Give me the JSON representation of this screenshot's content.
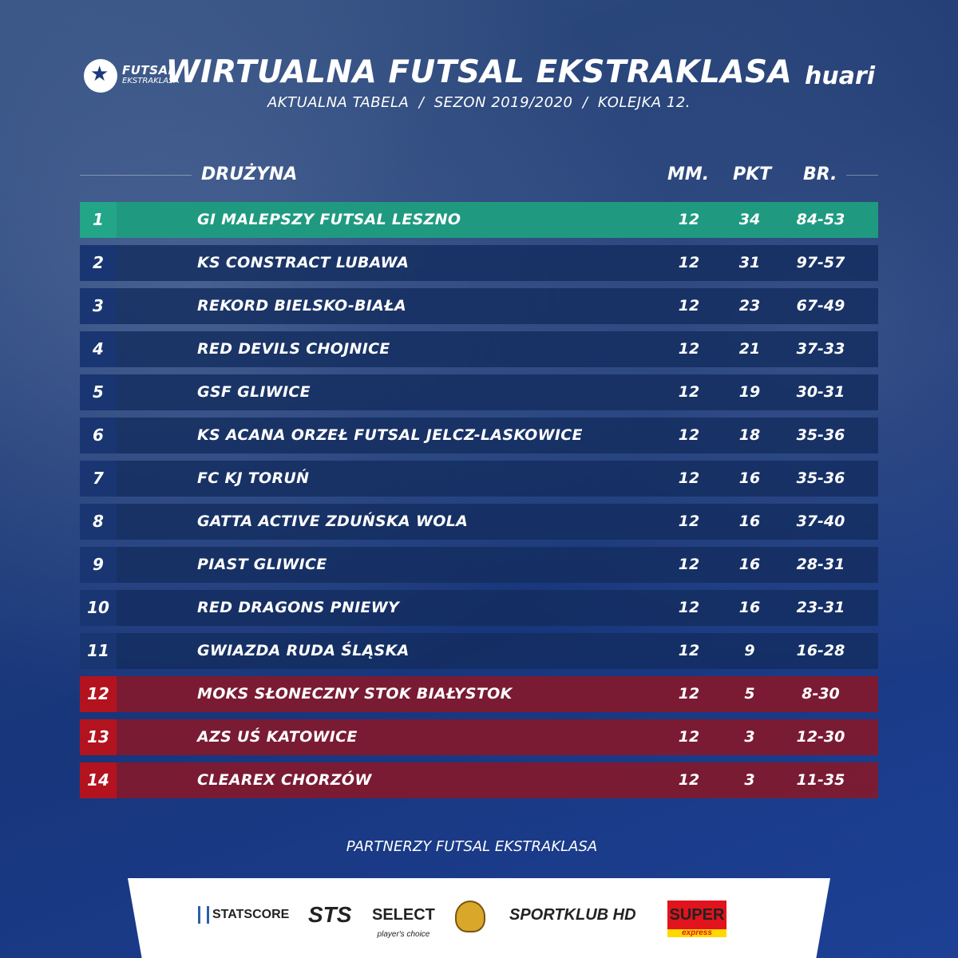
{
  "header": {
    "logo_left_line1": "FUTSAL",
    "logo_left_line2": "EKSTRAKLASA",
    "title": "WIRTUALNA FUTSAL EKSTRAKLASA",
    "subtitle": "AKTUALNA TABELA  /  SEZON 2019/2020  /  KOLEJKA 12.",
    "logo_right": "huari"
  },
  "table": {
    "headers": {
      "team": "DRUŻYNA",
      "mm": "MM.",
      "pkt": "PKT",
      "br": "BR."
    },
    "rows": [
      {
        "pos": "1",
        "team": "GI MALEPSZY FUTSAL LESZNO",
        "mm": "12",
        "pkt": "34",
        "br": "84-53",
        "zone": "promo"
      },
      {
        "pos": "2",
        "team": "KS CONSTRACT LUBAWA",
        "mm": "12",
        "pkt": "31",
        "br": "97-57",
        "zone": "normal"
      },
      {
        "pos": "3",
        "team": "REKORD BIELSKO-BIAŁA",
        "mm": "12",
        "pkt": "23",
        "br": "67-49",
        "zone": "normal"
      },
      {
        "pos": "4",
        "team": "RED DEVILS CHOJNICE",
        "mm": "12",
        "pkt": "21",
        "br": "37-33",
        "zone": "normal"
      },
      {
        "pos": "5",
        "team": "GSF GLIWICE",
        "mm": "12",
        "pkt": "19",
        "br": "30-31",
        "zone": "normal"
      },
      {
        "pos": "6",
        "team": "KS ACANA ORZEŁ FUTSAL JELCZ-LASKOWICE",
        "mm": "12",
        "pkt": "18",
        "br": "35-36",
        "zone": "normal"
      },
      {
        "pos": "7",
        "team": "FC KJ TORUŃ",
        "mm": "12",
        "pkt": "16",
        "br": "35-36",
        "zone": "normal"
      },
      {
        "pos": "8",
        "team": "GATTA ACTIVE ZDUŃSKA WOLA",
        "mm": "12",
        "pkt": "16",
        "br": "37-40",
        "zone": "normal"
      },
      {
        "pos": "9",
        "team": "PIAST GLIWICE",
        "mm": "12",
        "pkt": "16",
        "br": "28-31",
        "zone": "normal"
      },
      {
        "pos": "10",
        "team": "RED DRAGONS PNIEWY",
        "mm": "12",
        "pkt": "16",
        "br": "23-31",
        "zone": "normal"
      },
      {
        "pos": "11",
        "team": "GWIAZDA RUDA ŚLĄSKA",
        "mm": "12",
        "pkt": "9",
        "br": "16-28",
        "zone": "normal"
      },
      {
        "pos": "12",
        "team": "MOKS SŁONECZNY STOK BIAŁYSTOK",
        "mm": "12",
        "pkt": "5",
        "br": "8-30",
        "zone": "releg"
      },
      {
        "pos": "13",
        "team": "AZS UŚ KATOWICE",
        "mm": "12",
        "pkt": "3",
        "br": "12-30",
        "zone": "releg"
      },
      {
        "pos": "14",
        "team": "CLEAREX CHORZÓW",
        "mm": "12",
        "pkt": "3",
        "br": "11-35",
        "zone": "releg"
      }
    ]
  },
  "partners": {
    "label": "PARTNERZY FUTSAL EKSTRAKLASA",
    "statscore": "STATSCORE",
    "sts": "STS",
    "select": "SELECT",
    "select_tagline": "player's choice",
    "sportklub": "SPORTKLUB HD",
    "super": "SUPER",
    "super_tagline": "express"
  },
  "colors": {
    "promo": "#1f9a80",
    "releg": "#b3131f",
    "row": "#142d5f"
  }
}
